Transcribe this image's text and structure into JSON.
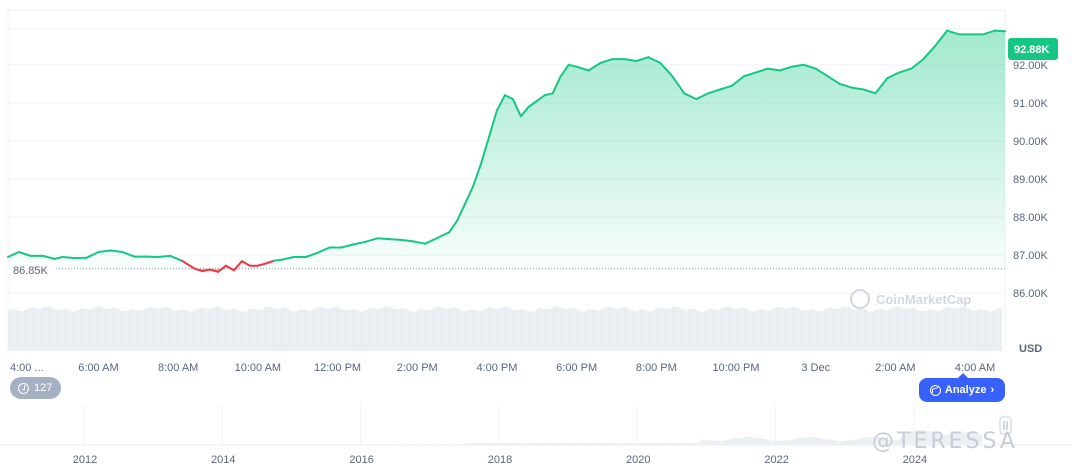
{
  "chart_data": {
    "type": "area",
    "currency_unit": "USD",
    "base_price_label": "86.85K",
    "current_price_label": "92.88K",
    "y_ticks": [
      "92.00K",
      "91.00K",
      "90.00K",
      "89.00K",
      "88.00K",
      "87.00K",
      "86.00K"
    ],
    "y_tick_values": [
      92000,
      91000,
      90000,
      89000,
      88000,
      87000,
      86000
    ],
    "ylim": [
      85820,
      93440
    ],
    "x_ticks": [
      "4:00 ...",
      "6:00 AM",
      "8:00 AM",
      "10:00 AM",
      "12:00 PM",
      "2:00 PM",
      "4:00 PM",
      "6:00 PM",
      "8:00 PM",
      "10:00 PM",
      "3 Dec",
      "2:00 AM",
      "4:00 AM"
    ],
    "x_tick_hours": [
      4,
      6,
      8,
      10,
      12,
      14,
      16,
      18,
      20,
      22,
      24,
      26,
      28
    ],
    "series": [
      {
        "x_hours": [
          3.73,
          4.0,
          4.3,
          4.6,
          4.9,
          5.1,
          5.4,
          5.7,
          6.0,
          6.3,
          6.6,
          6.9,
          7.2,
          7.5,
          7.8,
          8.1,
          8.4,
          8.6,
          8.8,
          9.0,
          9.2,
          9.4,
          9.6,
          9.8,
          10.0,
          10.2,
          10.4,
          10.6,
          10.9,
          11.2,
          11.5,
          11.8,
          12.1,
          12.4,
          12.7,
          13.0,
          13.3,
          13.6,
          13.9,
          14.2,
          14.5,
          14.8,
          15.0,
          15.2,
          15.4,
          15.6,
          15.8,
          16.0,
          16.2,
          16.4,
          16.6,
          16.8,
          17.0,
          17.2,
          17.4,
          17.6,
          17.8,
          18.0,
          18.3,
          18.6,
          18.9,
          19.2,
          19.5,
          19.8,
          20.1,
          20.4,
          20.7,
          21.0,
          21.3,
          21.6,
          21.9,
          22.2,
          22.5,
          22.8,
          23.1,
          23.4,
          23.7,
          24.0,
          24.3,
          24.6,
          24.9,
          25.2,
          25.5,
          25.8,
          26.1,
          26.4,
          26.7,
          27.0,
          27.3,
          27.6,
          27.9,
          28.2,
          28.5,
          28.75
        ],
        "y": [
          86950,
          87080,
          86980,
          86980,
          86900,
          86950,
          86920,
          86930,
          87080,
          87120,
          87080,
          86960,
          86960,
          86950,
          86980,
          86850,
          86650,
          86580,
          86620,
          86560,
          86720,
          86600,
          86840,
          86720,
          86720,
          86780,
          86850,
          86880,
          86950,
          86950,
          87060,
          87200,
          87200,
          87280,
          87350,
          87440,
          87420,
          87400,
          87360,
          87300,
          87450,
          87600,
          87900,
          88350,
          88800,
          89400,
          90100,
          90800,
          91200,
          91100,
          90650,
          90900,
          91050,
          91200,
          91250,
          91700,
          92000,
          91950,
          91850,
          92050,
          92150,
          92150,
          92100,
          92200,
          92050,
          91700,
          91250,
          91100,
          91250,
          91350,
          91450,
          91700,
          91800,
          91900,
          91850,
          91950,
          92000,
          91900,
          91700,
          91500,
          91400,
          91350,
          91250,
          91650,
          91800,
          91900,
          92150,
          92500,
          92900,
          92800,
          92800,
          92800,
          92900,
          92880
        ]
      }
    ],
    "volume_xlim_years": [
      2010.8,
      2026.3
    ],
    "volume_ticks": [
      "2012",
      "2014",
      "2016",
      "2018",
      "2020",
      "2022",
      "2024"
    ],
    "volume_tick_years": [
      2012,
      2014,
      2016,
      2018,
      2020,
      2022,
      2024
    ],
    "colors": {
      "up": "#16c784",
      "down": "#ea3943",
      "badge": "#16c784",
      "button": "#3861fb"
    }
  },
  "ui": {
    "history_count": "127",
    "analyze_label": "Analyze",
    "analyze_chevron": "›",
    "watermark": "CoinMarketCap",
    "overlay_signature": "@TERESSA"
  }
}
